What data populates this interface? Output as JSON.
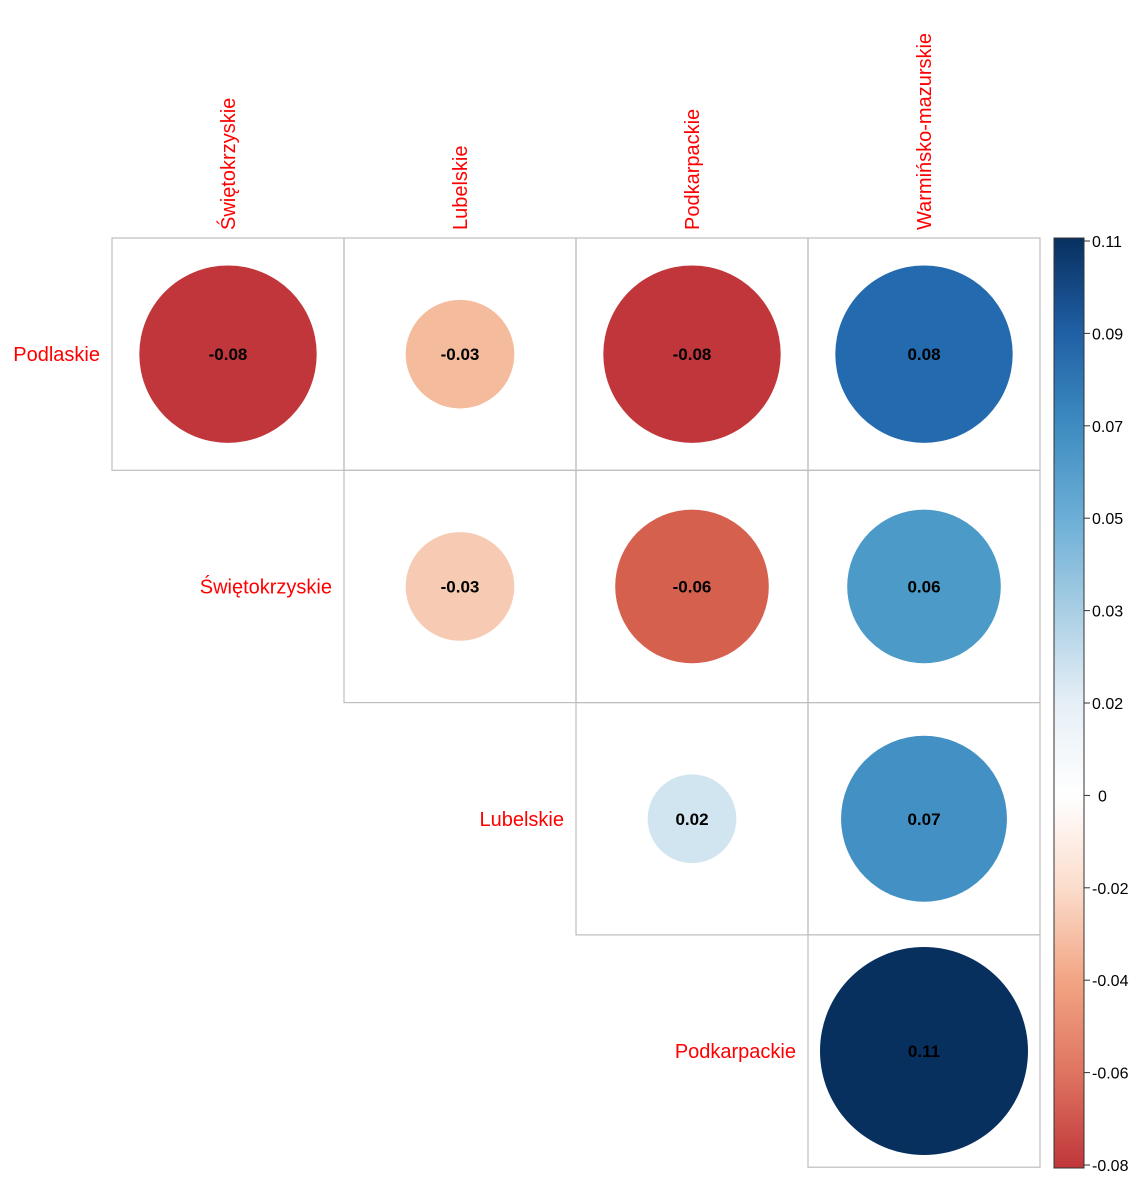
{
  "chart_data": {
    "type": "heatmap",
    "subtype": "correlation-circle-upper",
    "row_labels": [
      "Podlaskie",
      "Świętokrzyskie",
      "Lubelskie",
      "Podkarpackie"
    ],
    "col_labels": [
      "Świętokrzyskie",
      "Lubelskie",
      "Podkarpackie",
      "Warmińsko-mazurskie"
    ],
    "cells": [
      {
        "row": 0,
        "col": 0,
        "value": -0.08,
        "label": "-0.08",
        "color": "#C0363A"
      },
      {
        "row": 0,
        "col": 1,
        "value": -0.03,
        "label": "-0.03",
        "color": "#F5BB9D"
      },
      {
        "row": 0,
        "col": 2,
        "value": -0.08,
        "label": "-0.08",
        "color": "#C0363A"
      },
      {
        "row": 0,
        "col": 3,
        "value": 0.08,
        "label": "0.08",
        "color": "#246AAE"
      },
      {
        "row": 1,
        "col": 1,
        "value": -0.03,
        "label": "-0.03",
        "color": "#F7CBB3"
      },
      {
        "row": 1,
        "col": 2,
        "value": -0.06,
        "label": "-0.06",
        "color": "#D6604E"
      },
      {
        "row": 1,
        "col": 3,
        "value": 0.06,
        "label": "0.06",
        "color": "#4B9AC7"
      },
      {
        "row": 2,
        "col": 2,
        "value": 0.02,
        "label": "0.02",
        "color": "#D1E5F0"
      },
      {
        "row": 2,
        "col": 3,
        "value": 0.07,
        "label": "0.07",
        "color": "#4391C4"
      },
      {
        "row": 3,
        "col": 3,
        "value": 0.11,
        "label": "0.11",
        "color": "#08305F"
      }
    ],
    "colorbar": {
      "ticks": [
        "0.11",
        "0.09",
        "0.07",
        "0.05",
        "0.03",
        "0.02",
        "0",
        "-0.02",
        "-0.04",
        "-0.06",
        "-0.08"
      ],
      "range": [
        -0.08,
        0.11
      ],
      "colors": [
        "#08305F",
        "#1F5FA4",
        "#3D8BC0",
        "#6BAED6",
        "#A8CEE4",
        "#E6EFF6",
        "#FFFFFF",
        "#FBDCCB",
        "#F2A482",
        "#DE7360",
        "#C0363A"
      ]
    },
    "label_color": "#FF0000",
    "grid": true
  }
}
